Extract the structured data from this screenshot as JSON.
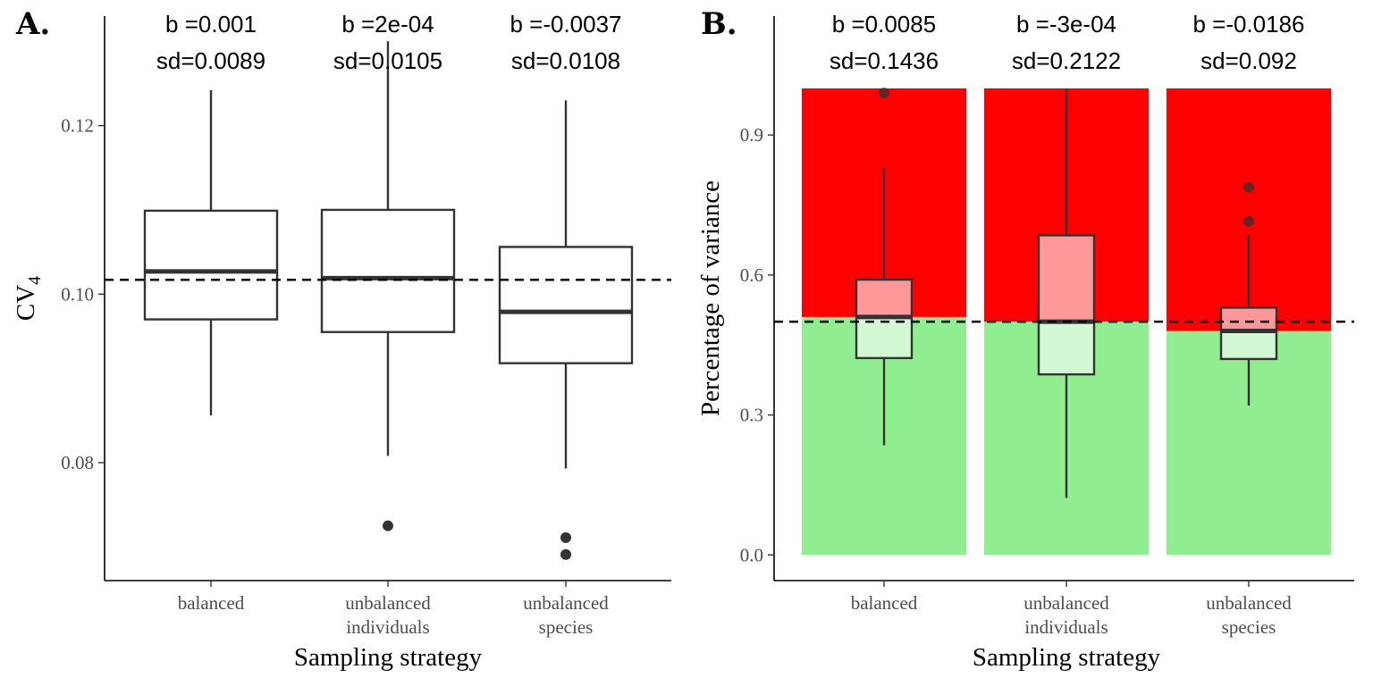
{
  "chart_data": [
    {
      "type": "boxplot",
      "panel_label": "A.",
      "xlabel": "Sampling strategy",
      "ylabel_main": "CV",
      "ylabel_sub": "4",
      "ylim": [
        0.066,
        0.133
      ],
      "yticks": [
        0.08,
        0.1,
        0.12
      ],
      "ytick_labels": [
        "0.08",
        "0.10",
        "0.12"
      ],
      "categories": [
        {
          "line1": "balanced",
          "line2": ""
        },
        {
          "line1": "unbalanced",
          "line2": "individuals"
        },
        {
          "line1": "unbalanced",
          "line2": "species"
        }
      ],
      "reference_line": 0.1017,
      "box_fill": "#ffffff",
      "boxes": [
        {
          "whisker_low": 0.0856,
          "q1": 0.097,
          "median": 0.1027,
          "q3": 0.1099,
          "whisker_high": 0.1242,
          "outliers": []
        },
        {
          "whisker_low": 0.0808,
          "q1": 0.0955,
          "median": 0.1019,
          "q3": 0.11,
          "whisker_high": 0.13,
          "outliers": [
            0.0725
          ]
        },
        {
          "whisker_low": 0.0793,
          "q1": 0.0918,
          "median": 0.0979,
          "q3": 0.1056,
          "whisker_high": 0.123,
          "outliers": [
            0.0711,
            0.0691
          ]
        }
      ],
      "annotations": [
        {
          "b": "b =0.001",
          "sd": "sd=0.0089"
        },
        {
          "b": "b =2e-04",
          "sd": "sd=0.0105"
        },
        {
          "b": "b =-0.0037",
          "sd": "sd=0.0108"
        }
      ]
    },
    {
      "type": "boxplot",
      "panel_label": "B.",
      "xlabel": "Sampling strategy",
      "ylabel": "Percentage of variance",
      "ylim": [
        -0.055,
        1.155
      ],
      "yticks": [
        0.0,
        0.3,
        0.6,
        0.9
      ],
      "ytick_labels": [
        "0.0",
        "0.3",
        "0.6",
        "0.9"
      ],
      "categories": [
        {
          "line1": "balanced",
          "line2": ""
        },
        {
          "line1": "unbalanced",
          "line2": "individuals"
        },
        {
          "line1": "unbalanced",
          "line2": "species"
        }
      ],
      "reference_line": 0.5,
      "colors": {
        "upper_bar": "#ff0000",
        "lower_bar": "#90ee90",
        "upper_box": "#ff9999",
        "lower_box": "#d4f7d4"
      },
      "background_bars": [
        {
          "split": 0.51,
          "top": 1.0
        },
        {
          "split": 0.5,
          "top": 1.0
        },
        {
          "split": 0.48,
          "top": 1.0
        }
      ],
      "boxes": [
        {
          "whisker_low": 0.235,
          "q1": 0.422,
          "median": 0.51,
          "q3": 0.59,
          "whisker_high": 0.83,
          "outliers": [
            0.99
          ]
        },
        {
          "whisker_low": 0.122,
          "q1": 0.387,
          "median": 0.5,
          "q3": 0.685,
          "whisker_high": 1.0,
          "outliers": []
        },
        {
          "whisker_low": 0.32,
          "q1": 0.42,
          "median": 0.48,
          "q3": 0.53,
          "whisker_high": 0.685,
          "outliers": [
            0.788,
            0.715
          ]
        }
      ],
      "annotations": [
        {
          "b": "b =0.0085",
          "sd": "sd=0.1436"
        },
        {
          "b": "b =-3e-04",
          "sd": "sd=0.2122"
        },
        {
          "b": "b =-0.0186",
          "sd": "sd=0.092"
        }
      ]
    }
  ]
}
